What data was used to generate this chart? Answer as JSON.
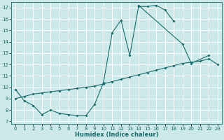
{
  "xlabel": "Humidex (Indice chaleur)",
  "bg_color": "#cce8e8",
  "grid_color": "#ffffff",
  "line_color": "#1a6b6b",
  "xlim": [
    -0.5,
    23.5
  ],
  "ylim": [
    6.8,
    17.5
  ],
  "xticks": [
    0,
    1,
    2,
    3,
    4,
    5,
    6,
    7,
    8,
    9,
    10,
    11,
    12,
    13,
    14,
    15,
    16,
    17,
    18,
    19,
    20,
    21,
    22,
    23
  ],
  "yticks": [
    7,
    8,
    9,
    10,
    11,
    12,
    13,
    14,
    15,
    16,
    17
  ],
  "line1_x": [
    0,
    1,
    2,
    3,
    4,
    5,
    6,
    7,
    8,
    9,
    10,
    11,
    12,
    13,
    14,
    15,
    16,
    17,
    18
  ],
  "line1_y": [
    9.8,
    8.8,
    8.4,
    7.6,
    8.0,
    7.7,
    7.6,
    7.5,
    7.5,
    8.5,
    10.4,
    14.8,
    15.9,
    12.8,
    17.1,
    17.1,
    17.2,
    16.8,
    15.8
  ],
  "line2_x": [
    14,
    19,
    20,
    22
  ],
  "line2_y": [
    17.2,
    13.8,
    12.1,
    12.8
  ],
  "line3_x": [
    0,
    1,
    2,
    3,
    4,
    5,
    6,
    7,
    8,
    9,
    10,
    11,
    12,
    13,
    14,
    15,
    16,
    17,
    18,
    19,
    20,
    21,
    22,
    23
  ],
  "line3_y": [
    9.0,
    9.2,
    9.4,
    9.5,
    9.6,
    9.7,
    9.8,
    9.9,
    10.0,
    10.1,
    10.3,
    10.5,
    10.7,
    10.9,
    11.1,
    11.3,
    11.5,
    11.7,
    11.9,
    12.1,
    12.2,
    12.3,
    12.5,
    12.0
  ]
}
